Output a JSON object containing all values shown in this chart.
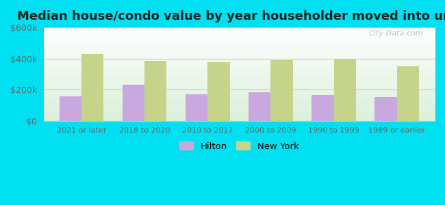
{
  "title": "Median house/condo value by year householder moved into unit",
  "categories": [
    "2021 or later",
    "2018 to 2020",
    "2010 to 2017",
    "2000 to 2009",
    "1990 to 1999",
    "1989 or earlier"
  ],
  "hilton_values": [
    155000,
    230000,
    168000,
    182000,
    165000,
    150000
  ],
  "newyork_values": [
    430000,
    383000,
    378000,
    388000,
    398000,
    352000
  ],
  "hilton_color": "#c9a8e0",
  "newyork_color": "#c5d48a",
  "background_outer": "#00e0f0",
  "ylim": [
    0,
    600000
  ],
  "yticks": [
    0,
    200000,
    400000,
    600000
  ],
  "ytick_labels": [
    "$0",
    "$200k",
    "$400k",
    "$600k"
  ],
  "legend_hilton": "Hilton",
  "legend_newyork": "New York",
  "bar_width": 0.35,
  "title_fontsize": 13,
  "watermark": "City-Data.com"
}
